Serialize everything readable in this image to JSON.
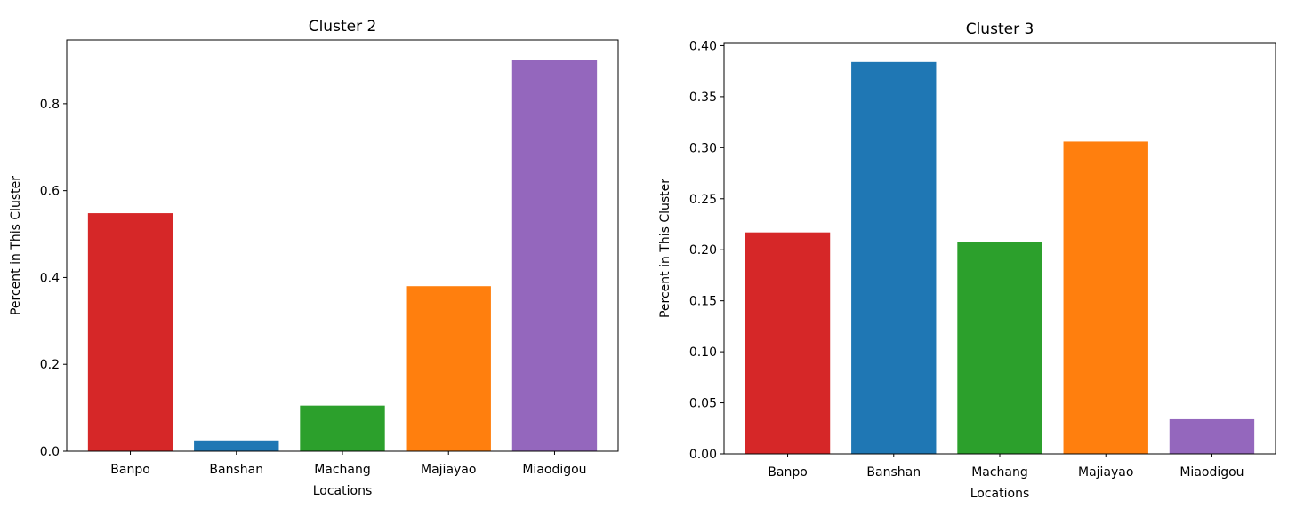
{
  "chart_data": [
    {
      "type": "bar",
      "title": "Cluster 2",
      "xlabel": "Locations",
      "ylabel": "Percent in This Cluster",
      "categories": [
        "Banpo",
        "Banshan",
        "Machang",
        "Majiayao",
        "Miaodigou"
      ],
      "values": [
        0.548,
        0.025,
        0.105,
        0.38,
        0.902
      ],
      "colors": [
        "#d62728",
        "#1f77b4",
        "#2ca02c",
        "#ff7f0e",
        "#9467bd"
      ],
      "ylim": [
        0,
        0.947
      ],
      "yticks": [
        0.0,
        0.2,
        0.4,
        0.6,
        0.8
      ],
      "ytick_labels": [
        "0.0",
        "0.2",
        "0.4",
        "0.6",
        "0.8"
      ],
      "grid": false
    },
    {
      "type": "bar",
      "title": "Cluster 3",
      "xlabel": "Locations",
      "ylabel": "Percent in This Cluster",
      "categories": [
        "Banpo",
        "Banshan",
        "Machang",
        "Majiayao",
        "Miaodigou"
      ],
      "values": [
        0.217,
        0.384,
        0.208,
        0.306,
        0.034
      ],
      "colors": [
        "#d62728",
        "#1f77b4",
        "#2ca02c",
        "#ff7f0e",
        "#9467bd"
      ],
      "ylim": [
        0,
        0.403
      ],
      "yticks": [
        0.0,
        0.05,
        0.1,
        0.15,
        0.2,
        0.25,
        0.3,
        0.35,
        0.4
      ],
      "ytick_labels": [
        "0.00",
        "0.05",
        "0.10",
        "0.15",
        "0.20",
        "0.25",
        "0.30",
        "0.35",
        "0.40"
      ],
      "grid": false
    }
  ]
}
